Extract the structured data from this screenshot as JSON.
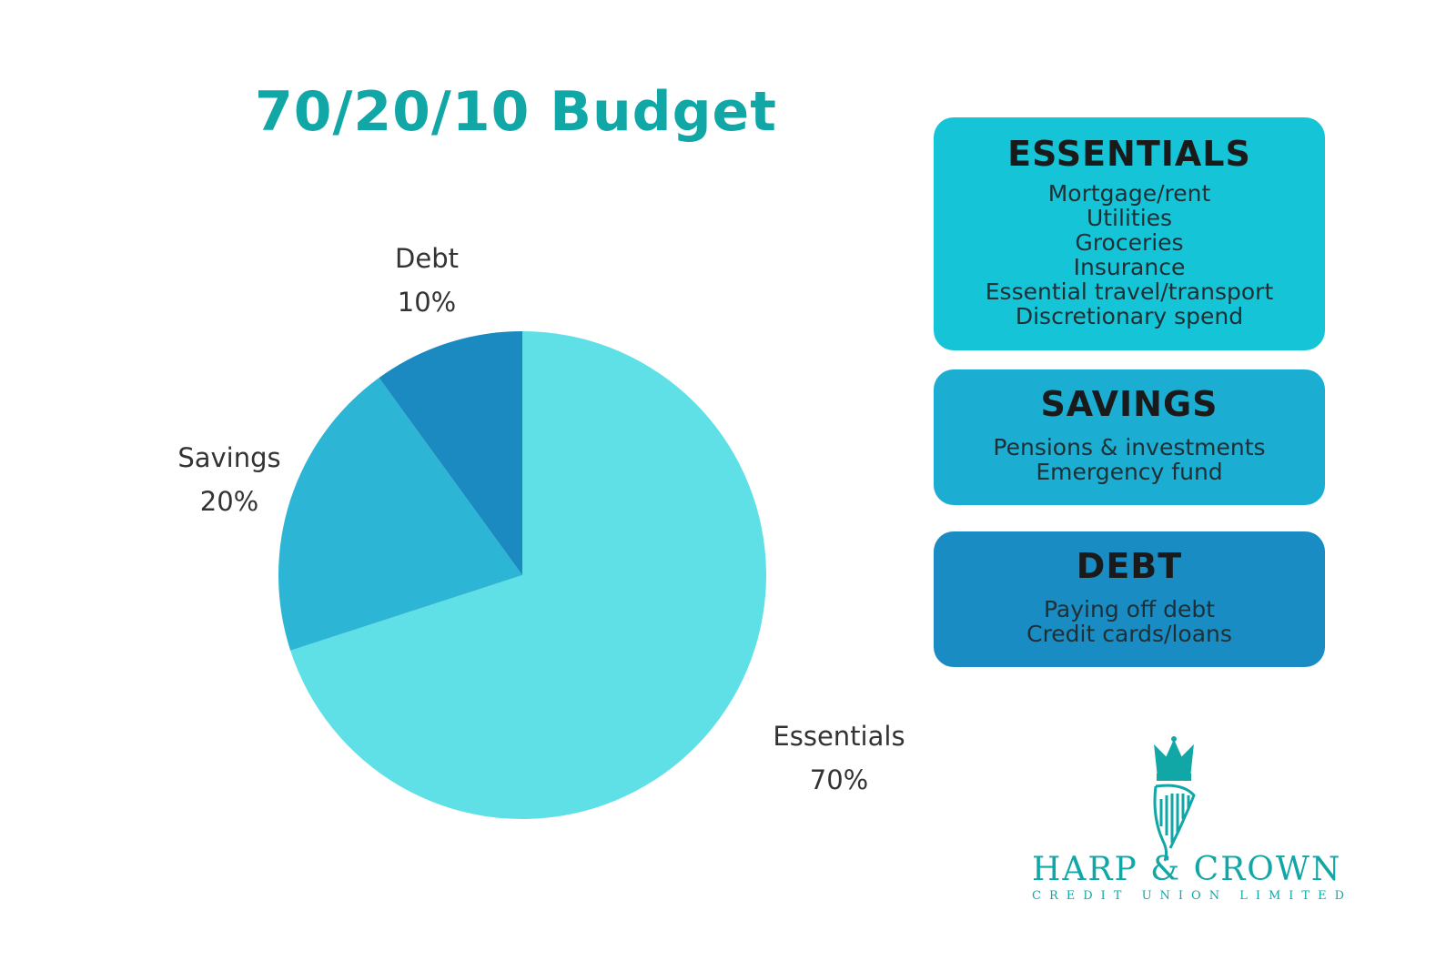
{
  "chart_data": {
    "type": "pie",
    "title": "70/20/10 Budget",
    "slices": [
      {
        "label": "Essentials",
        "value": 70,
        "value_label": "70%",
        "color": "#5fe0e6"
      },
      {
        "label": "Savings",
        "value": 20,
        "value_label": "20%",
        "color": "#2db5d6"
      },
      {
        "label": "Debt",
        "value": 10,
        "value_label": "10%",
        "color": "#1a8ac0"
      }
    ]
  },
  "cards": {
    "essentials": {
      "title": "ESSENTIALS",
      "items": [
        "Mortgage/rent",
        "Utilities",
        "Groceries",
        "Insurance",
        "Essential travel/transport",
        "Discretionary spend"
      ],
      "color": "#16c4d8"
    },
    "savings": {
      "title": "SAVINGS",
      "items": [
        "Pensions & investments",
        "Emergency fund"
      ],
      "color": "#1cadd3"
    },
    "debt": {
      "title": "DEBT",
      "items": [
        "Paying off debt",
        "Credit cards/loans"
      ],
      "color": "#1a8cc4"
    }
  },
  "brand": {
    "name": "HARP & CROWN",
    "subtitle": "CREDIT UNION LIMITED",
    "logo_icon": "harp-crown-icon",
    "color": "#12a7a7"
  }
}
